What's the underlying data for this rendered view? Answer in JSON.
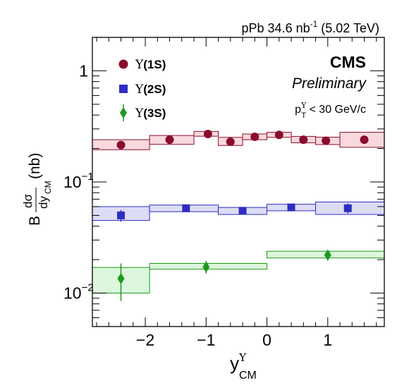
{
  "header_text": "pPb 34.6 nb",
  "header_sup": "-1",
  "header_tail": " (5.02 TeV)",
  "cms_label": "CMS",
  "preliminary_label": "Preliminary",
  "pt_cut": {
    "p": "p",
    "sup": "Υ",
    "sub": "T",
    "rest": " < 30 GeV/c"
  },
  "chart_data": {
    "type": "scatter",
    "title": "",
    "xlabel": "y",
    "xlabel_sup": "Υ",
    "xlabel_sub": "CM",
    "ylabel_prefix": "B",
    "ylabel_num": "dσ",
    "ylabel_den": "dy",
    "ylabel_den_sub": "CM",
    "ylabel_unit": "(nb)",
    "xlim": [
      -2.87,
      1.93
    ],
    "ylim": [
      0.005,
      2.0
    ],
    "y_scale": "log",
    "x_ticks": [
      {
        "value": -2,
        "label": "−2"
      },
      {
        "value": -1,
        "label": "−1"
      },
      {
        "value": 0,
        "label": "0"
      },
      {
        "value": 1,
        "label": "1"
      }
    ],
    "y_ticks": [
      {
        "value": 1,
        "label": "1",
        "exp": ""
      },
      {
        "value": 0.1,
        "label": "10",
        "exp": "−1"
      },
      {
        "value": 0.01,
        "label": "10",
        "exp": "−2"
      }
    ],
    "legend_position": "top-left",
    "series": [
      {
        "name": "Υ(1S)",
        "name_base": "Υ",
        "name_rest": "(1S)",
        "marker": "circle",
        "color": "#8b0d2e",
        "fill": "#fad9de",
        "points": [
          {
            "x": -2.4,
            "y": 0.215,
            "err": 0.012
          },
          {
            "x": -1.6,
            "y": 0.24,
            "err": 0.01
          },
          {
            "x": -0.97,
            "y": 0.27,
            "err": 0.01
          },
          {
            "x": -0.6,
            "y": 0.23,
            "err": 0.01
          },
          {
            "x": -0.2,
            "y": 0.255,
            "err": 0.008
          },
          {
            "x": 0.2,
            "y": 0.265,
            "err": 0.008
          },
          {
            "x": 0.6,
            "y": 0.24,
            "err": 0.01
          },
          {
            "x": 0.97,
            "y": 0.235,
            "err": 0.01
          },
          {
            "x": 1.6,
            "y": 0.24,
            "err": 0.01
          }
        ],
        "boxes": [
          {
            "x1": -2.87,
            "x2": -1.93,
            "y1": 0.195,
            "y2": 0.24
          },
          {
            "x1": -1.93,
            "x2": -1.2,
            "y1": 0.218,
            "y2": 0.262
          },
          {
            "x1": -1.2,
            "x2": -0.8,
            "y1": 0.258,
            "y2": 0.285
          },
          {
            "x1": -0.8,
            "x2": -0.4,
            "y1": 0.213,
            "y2": 0.252
          },
          {
            "x1": -0.4,
            "x2": 0.0,
            "y1": 0.24,
            "y2": 0.27
          },
          {
            "x1": 0.0,
            "x2": 0.4,
            "y1": 0.252,
            "y2": 0.28
          },
          {
            "x1": 0.4,
            "x2": 0.8,
            "y1": 0.225,
            "y2": 0.257
          },
          {
            "x1": 0.8,
            "x2": 1.2,
            "y1": 0.217,
            "y2": 0.253
          },
          {
            "x1": 1.2,
            "x2": 1.93,
            "y1": 0.205,
            "y2": 0.28
          }
        ]
      },
      {
        "name": "Υ(2S)",
        "name_base": "Υ",
        "name_rest": "(2S)",
        "marker": "square",
        "color": "#2e2ec0",
        "fill": "#dcdcf7",
        "points": [
          {
            "x": -2.4,
            "y": 0.05,
            "err": 0.006
          },
          {
            "x": -1.33,
            "y": 0.058,
            "err": 0.004
          },
          {
            "x": -0.4,
            "y": 0.055,
            "err": 0.004
          },
          {
            "x": 0.4,
            "y": 0.059,
            "err": 0.004
          },
          {
            "x": 1.33,
            "y": 0.058,
            "err": 0.006
          }
        ],
        "boxes": [
          {
            "x1": -2.87,
            "x2": -1.93,
            "y1": 0.045,
            "y2": 0.06
          },
          {
            "x1": -1.93,
            "x2": -0.8,
            "y1": 0.054,
            "y2": 0.062
          },
          {
            "x1": -0.8,
            "x2": 0.0,
            "y1": 0.051,
            "y2": 0.059
          },
          {
            "x1": 0.0,
            "x2": 0.8,
            "y1": 0.055,
            "y2": 0.063
          },
          {
            "x1": 0.8,
            "x2": 1.93,
            "y1": 0.051,
            "y2": 0.066
          }
        ]
      },
      {
        "name": "Υ(3S)",
        "name_base": "Υ",
        "name_rest": "(3S)",
        "marker": "diamond",
        "color": "#1a9a1a",
        "fill": "#dcf7dc",
        "points": [
          {
            "x": -2.4,
            "y": 0.0135,
            "err": 0.005
          },
          {
            "x": -1.0,
            "y": 0.0172,
            "err": 0.0022
          },
          {
            "x": 1.0,
            "y": 0.022,
            "err": 0.0024
          }
        ],
        "boxes": [
          {
            "x1": -2.87,
            "x2": -1.93,
            "y1": 0.01,
            "y2": 0.017
          },
          {
            "x1": -1.93,
            "x2": 0.0,
            "y1": 0.0164,
            "y2": 0.0185
          },
          {
            "x1": 0.0,
            "x2": 1.93,
            "y1": 0.0207,
            "y2": 0.0238
          }
        ]
      }
    ]
  }
}
